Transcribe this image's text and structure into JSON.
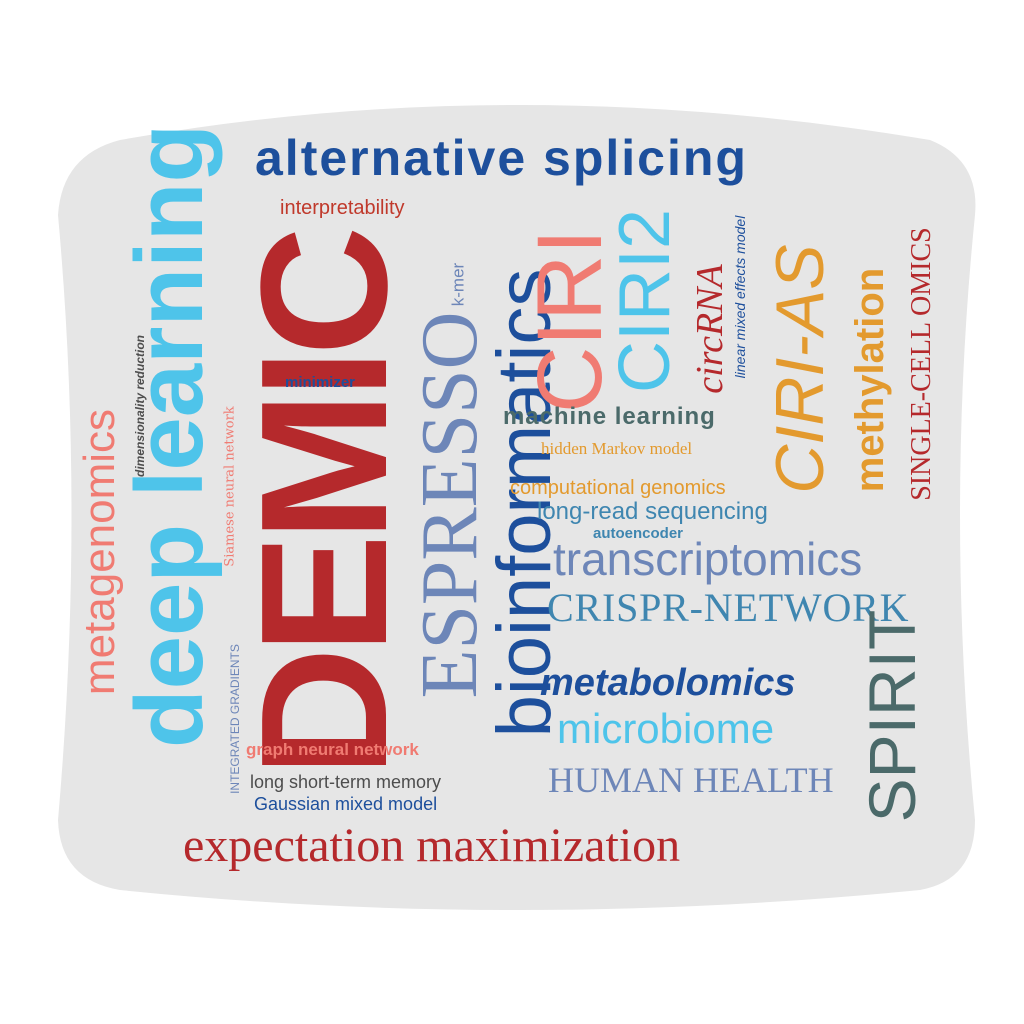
{
  "words": {
    "alternative_splicing": "alternative splicing",
    "interpretability": "interpretability",
    "deep_learning": "deep learning",
    "demic": "DEMIC",
    "espresso": "ESPRESSO",
    "k_mer": "k-mer",
    "bioinformatics": "bioinformatics",
    "ciri": "CIRI",
    "ciri2": "CIRI2",
    "circrna": "circRNA",
    "linear_mixed_effects_model": "linear mixed effects model",
    "ciri_as": "CIRI-AS",
    "methylation": "methylation",
    "single_cell_omics": "SINGLE-CELL OMICS",
    "dimensionality_reduction": "dimensionality reduction",
    "siamese_neural_network": "Siamese neural network",
    "minimizer": "minimizer",
    "metagenomics": "metagenomics",
    "machine_learning": "machine learning",
    "hidden_markov_model": "hidden Markov model",
    "computational_genomics": "computational genomics",
    "long_read_sequencing": "long-read sequencing",
    "autoencoder": "autoencoder",
    "transcriptomics": "transcriptomics",
    "crispr_network": "CRISPR-NETWORK",
    "spirit": "SPIRIT",
    "integrated_gradients": "INTEGRATED GRADIENTS",
    "metabolomics": "metabolomics",
    "microbiome": "microbiome",
    "graph_neural_network": "graph neural network",
    "human_health": "HUMAN HEALTH",
    "long_short_term_memory": "long short-term memory",
    "gaussian_mixed_model": "Gaussian mixed model",
    "expectation_maximization": "expectation maximization"
  },
  "colors": {
    "background_shape": "#e6e6e6",
    "dark_blue": "#1d4f9c",
    "sky_blue": "#4ec4ea",
    "dark_red": "#b5292c",
    "salmon": "#f07b72",
    "slate_blue": "#6d86b8",
    "orange": "#e39a2e",
    "teal_gray": "#4b6a6a",
    "steel_blue": "#3f86b0",
    "gray_text": "#4d4d4d"
  }
}
